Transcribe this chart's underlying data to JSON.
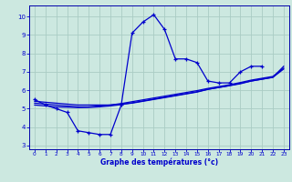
{
  "x": [
    0,
    1,
    2,
    3,
    4,
    5,
    6,
    7,
    8,
    9,
    10,
    11,
    12,
    13,
    14,
    15,
    16,
    17,
    18,
    19,
    20,
    21,
    22,
    23
  ],
  "temp_main": [
    5.5,
    5.2,
    5.0,
    4.8,
    3.8,
    3.7,
    3.6,
    3.6,
    5.2,
    9.1,
    9.7,
    10.1,
    9.3,
    7.7,
    7.7,
    7.5,
    6.5,
    6.4,
    6.4,
    7.0,
    7.3,
    7.3,
    null,
    null
  ],
  "temp_line1": [
    5.4,
    5.35,
    5.3,
    5.25,
    5.2,
    5.2,
    5.2,
    5.2,
    5.25,
    5.3,
    5.4,
    5.5,
    5.6,
    5.7,
    5.8,
    5.9,
    6.05,
    6.15,
    6.25,
    6.35,
    6.5,
    6.6,
    6.7,
    7.3
  ],
  "temp_line2": [
    5.3,
    5.25,
    5.2,
    5.15,
    5.1,
    5.1,
    5.15,
    5.2,
    5.28,
    5.38,
    5.48,
    5.58,
    5.68,
    5.78,
    5.88,
    5.98,
    6.1,
    6.2,
    6.3,
    6.42,
    6.55,
    6.65,
    6.75,
    7.2
  ],
  "temp_line3": [
    5.2,
    5.15,
    5.1,
    5.08,
    5.06,
    5.07,
    5.1,
    5.15,
    5.22,
    5.32,
    5.42,
    5.52,
    5.62,
    5.72,
    5.82,
    5.92,
    6.05,
    6.15,
    6.25,
    6.38,
    6.5,
    6.6,
    6.7,
    7.15
  ],
  "bg_color": "#cce8e0",
  "grid_color": "#aaccC4",
  "line_color": "#0000cc",
  "xlabel": "Graphe des températures (°c)",
  "xlabel_color": "#0000cc",
  "axis_color": "#0000aa",
  "tick_color": "#0000cc",
  "ylim": [
    2.8,
    10.6
  ],
  "xlim": [
    -0.5,
    23.5
  ],
  "yticks": [
    3,
    4,
    5,
    6,
    7,
    8,
    9,
    10
  ],
  "xticks": [
    0,
    1,
    2,
    3,
    4,
    5,
    6,
    7,
    8,
    9,
    10,
    11,
    12,
    13,
    14,
    15,
    16,
    17,
    18,
    19,
    20,
    21,
    22,
    23
  ]
}
